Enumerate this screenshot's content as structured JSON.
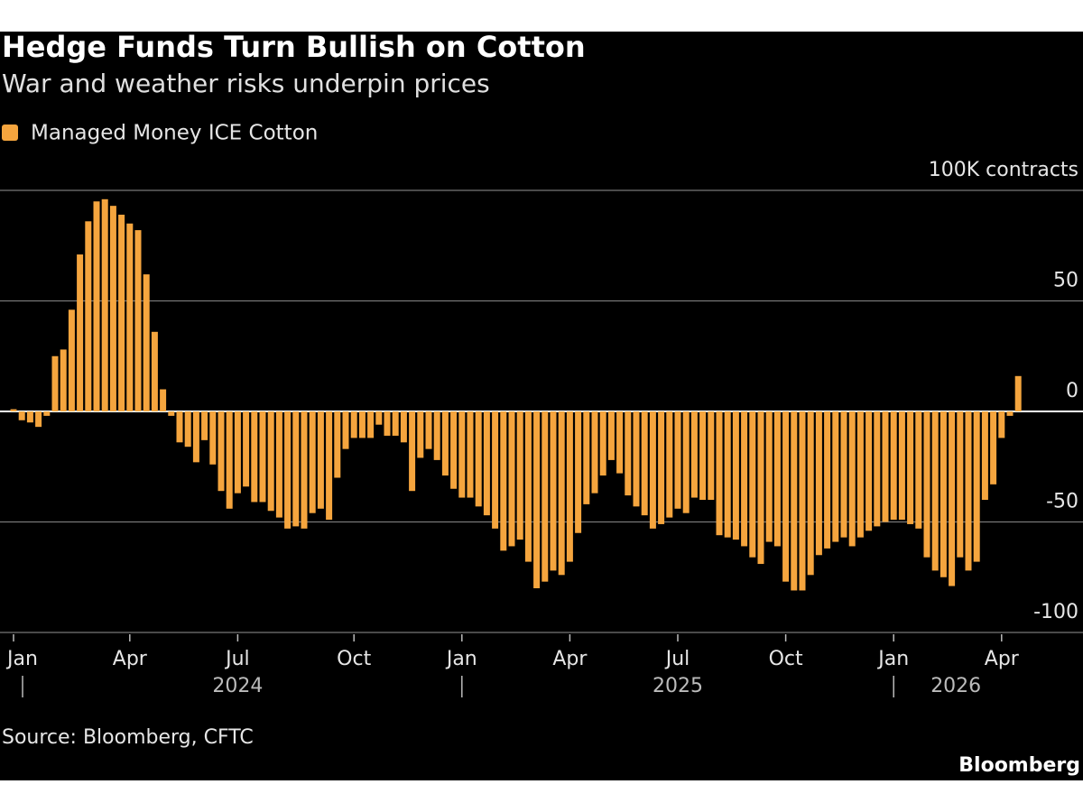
{
  "chart_data": {
    "type": "bar",
    "title": "Hedge Funds Turn Bullish on Cotton",
    "subtitle": "War and weather risks underpin prices",
    "source": "Source: Bloomberg, CFTC",
    "credit": "Bloomberg",
    "categories": [
      "Jan",
      null,
      null,
      null,
      null,
      null,
      null,
      null,
      null,
      null,
      null,
      null,
      null,
      null,
      "Apr",
      null,
      null,
      null,
      null,
      null,
      null,
      null,
      null,
      null,
      null,
      null,
      null,
      "Jul",
      null,
      null,
      null,
      null,
      null,
      null,
      null,
      null,
      null,
      null,
      null,
      null,
      null,
      "Oct",
      null,
      null,
      null,
      null,
      null,
      null,
      null,
      null,
      null,
      null,
      null,
      null,
      "Jan",
      null,
      null,
      null,
      null,
      null,
      null,
      null,
      null,
      null,
      null,
      null,
      null,
      "Apr",
      null,
      null,
      null,
      null,
      null,
      null,
      null,
      null,
      null,
      null,
      null,
      null,
      "Jul",
      null,
      null,
      null,
      null,
      null,
      null,
      null,
      null,
      null,
      null,
      null,
      null,
      "Oct",
      null,
      null,
      null,
      null,
      null,
      null,
      null,
      null,
      null,
      null,
      null,
      null,
      "Jan",
      null,
      null,
      null,
      null,
      null,
      null,
      null,
      null,
      null,
      null,
      null,
      null,
      "Apr",
      null,
      null
    ],
    "year_labels": [
      "2024",
      "2025",
      "2026"
    ],
    "series": [
      {
        "name": "Managed Money ICE Cotton",
        "color": "#f5a53e",
        "values": [
          1,
          -4,
          -5,
          -7,
          -2,
          25,
          28,
          46,
          71,
          86,
          95,
          96,
          93,
          89,
          85,
          82,
          62,
          36,
          10,
          -2,
          -14,
          -16,
          -23,
          -13,
          -24,
          -36,
          -44,
          -37,
          -34,
          -41,
          -41,
          -45,
          -48,
          -53,
          -52,
          -53,
          -46,
          -44,
          -49,
          -30,
          -17,
          -12,
          -12,
          -12,
          -6,
          -11,
          -11,
          -14,
          -36,
          -21,
          -17,
          -22,
          -29,
          -35,
          -39,
          -39,
          -43,
          -47,
          -53,
          -63,
          -61,
          -58,
          -68,
          -80,
          -77,
          -72,
          -74,
          -68,
          -55,
          -42,
          -37,
          -29,
          -22,
          -28,
          -38,
          -43,
          -47,
          -53,
          -51,
          -48,
          -44,
          -46,
          -39,
          -40,
          -40,
          -56,
          -57,
          -58,
          -61,
          -66,
          -69,
          -59,
          -61,
          -77,
          -81,
          -81,
          -74,
          -65,
          -62,
          -59,
          -57,
          -61,
          -57,
          -54,
          -52,
          -50,
          -49,
          -49,
          -51,
          -53,
          -66,
          -72,
          -75,
          -79,
          -66,
          -72,
          -68,
          -40,
          -33,
          -12,
          -2,
          16
        ]
      }
    ],
    "ylim": [
      -100,
      100
    ],
    "yticks": [
      {
        "value": 100,
        "label": "100K contracts"
      },
      50,
      0,
      -50,
      -100
    ],
    "grid": true
  }
}
